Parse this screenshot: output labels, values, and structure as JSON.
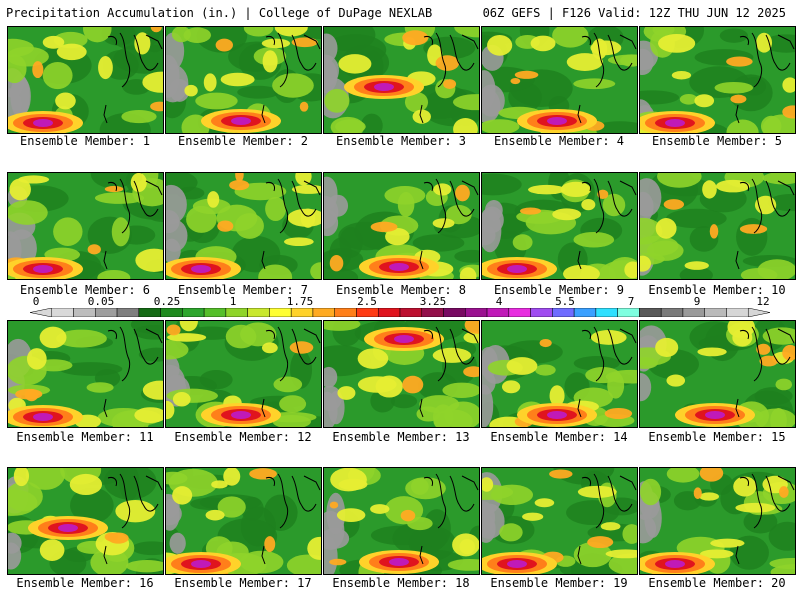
{
  "header": {
    "left": "Precipitation Accumulation (in.) | College of DuPage NEXLAB",
    "right": "06Z GEFS | F126 Valid: 12Z THU JUN 12 2025"
  },
  "members": [
    {
      "label": "Ensemble Member: 1",
      "hot": "sw"
    },
    {
      "label": "Ensemble Member: 2",
      "hot": "s"
    },
    {
      "label": "Ensemble Member: 3",
      "hot": "c"
    },
    {
      "label": "Ensemble Member: 4",
      "hot": "s"
    },
    {
      "label": "Ensemble Member: 5",
      "hot": "sw"
    },
    {
      "label": "Ensemble Member: 6",
      "hot": "sw"
    },
    {
      "label": "Ensemble Member: 7",
      "hot": "sw"
    },
    {
      "label": "Ensemble Member: 8",
      "hot": "s"
    },
    {
      "label": "Ensemble Member: 9",
      "hot": "sw"
    },
    {
      "label": "Ensemble Member: 10",
      "hot": "none"
    },
    {
      "label": "Ensemble Member: 11",
      "hot": "sw"
    },
    {
      "label": "Ensemble Member: 12",
      "hot": "s"
    },
    {
      "label": "Ensemble Member: 13",
      "hot": "n"
    },
    {
      "label": "Ensemble Member: 14",
      "hot": "s"
    },
    {
      "label": "Ensemble Member: 15",
      "hot": "s"
    },
    {
      "label": "Ensemble Member: 16",
      "hot": "c"
    },
    {
      "label": "Ensemble Member: 17",
      "hot": "sw"
    },
    {
      "label": "Ensemble Member: 18",
      "hot": "s"
    },
    {
      "label": "Ensemble Member: 19",
      "hot": "sw"
    },
    {
      "label": "Ensemble Member: 20",
      "hot": "sw"
    }
  ],
  "colorbar": {
    "labels": [
      "0",
      "0.05",
      "0.25",
      "1",
      "1.75",
      "2.5",
      "3.25",
      "4",
      "5.5",
      "7",
      "9",
      "12"
    ],
    "colors": [
      "#d9d9d9",
      "#bdbdbd",
      "#9e9e9e",
      "#7f7f7f",
      "#156b15",
      "#1f8a1f",
      "#2ea62e",
      "#55bf2a",
      "#8fd42a",
      "#c9e82e",
      "#ffff33",
      "#ffd22a",
      "#ffaa22",
      "#ff7f1a",
      "#ff3b14",
      "#e0141e",
      "#bd1030",
      "#93104a",
      "#780a62",
      "#9a1290",
      "#c01ab8",
      "#e82ee0",
      "#a04cf0",
      "#6f6cff",
      "#3aa0ff",
      "#2fe0ff",
      "#7fffe0",
      "#5a5a5a",
      "#7a7a7a",
      "#9a9a9a",
      "#bababa",
      "#d6d6d6"
    ]
  }
}
